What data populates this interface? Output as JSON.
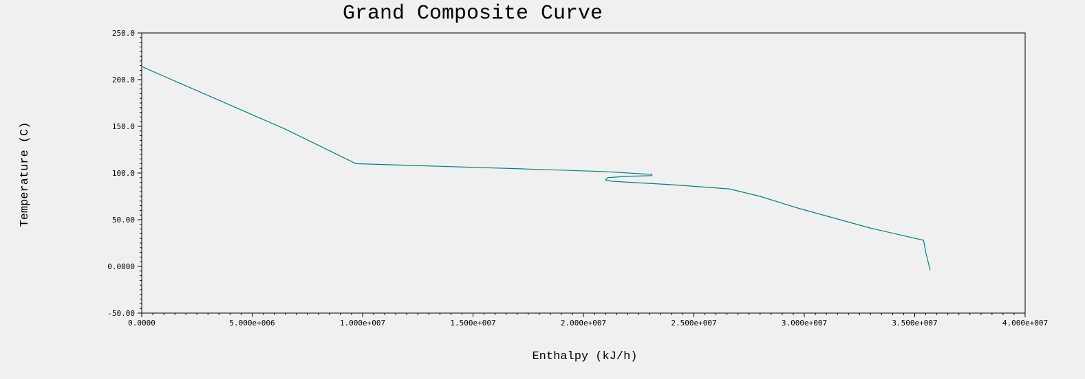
{
  "chart_data": {
    "type": "line",
    "title": "Grand Composite Curve",
    "xlabel": "Enthalpy (kJ/h)",
    "ylabel": "Temperature (C)",
    "xlim": [
      0,
      40000000
    ],
    "ylim": [
      -50,
      250
    ],
    "grid": false,
    "x_tick_labels": [
      "0.0000",
      "5.000e+006",
      "1.000e+007",
      "1.500e+007",
      "2.000e+007",
      "2.500e+007",
      "3.000e+007",
      "3.500e+007",
      "4.000e+007"
    ],
    "x_ticks": [
      0,
      5000000,
      10000000,
      15000000,
      20000000,
      25000000,
      30000000,
      35000000,
      40000000
    ],
    "y_tick_labels": [
      "-50.00",
      "0.0000",
      "50.00",
      "100.0",
      "150.0",
      "200.0",
      "250.0"
    ],
    "y_ticks": [
      -50,
      0,
      50,
      100,
      150,
      200,
      250
    ],
    "series": [
      {
        "color": "#008080",
        "points": [
          [
            0,
            214
          ],
          [
            6500000,
            147
          ],
          [
            9700000,
            110
          ],
          [
            17300000,
            104.4
          ],
          [
            21000000,
            101.5
          ],
          [
            23100000,
            98.5
          ],
          [
            23100000,
            97.2
          ],
          [
            22000000,
            96.5
          ],
          [
            21100000,
            95
          ],
          [
            21000000,
            92.6
          ],
          [
            21300000,
            91.2
          ],
          [
            22500000,
            89.5
          ],
          [
            24000000,
            87.5
          ],
          [
            26600000,
            83
          ],
          [
            28000000,
            75
          ],
          [
            29700000,
            62.5
          ],
          [
            33000000,
            41
          ],
          [
            35400000,
            28
          ],
          [
            35500000,
            15
          ],
          [
            35700000,
            -4
          ]
        ]
      }
    ]
  }
}
